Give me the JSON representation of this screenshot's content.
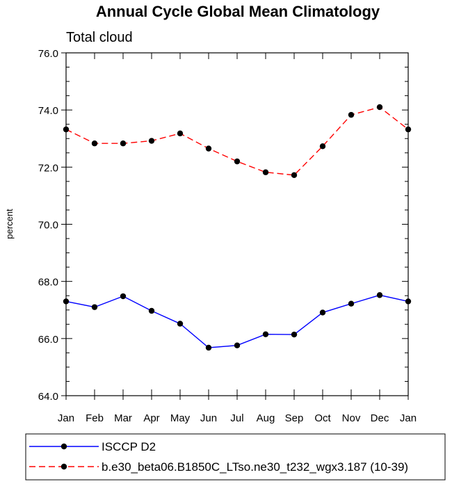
{
  "chart_data": {
    "type": "line",
    "title": "Annual Cycle Global Mean Climatology",
    "subtitle": "Total cloud",
    "xlabel": "",
    "ylabel": "percent",
    "categories": [
      "Jan",
      "Feb",
      "Mar",
      "Apr",
      "May",
      "Jun",
      "Jul",
      "Aug",
      "Sep",
      "Oct",
      "Nov",
      "Dec",
      "Jan"
    ],
    "ylim": [
      64.0,
      76.0
    ],
    "yticks": [
      64.0,
      66.0,
      68.0,
      70.0,
      72.0,
      74.0,
      76.0
    ],
    "ytick_labels": [
      "64.0",
      "66.0",
      "68.0",
      "70.0",
      "72.0",
      "74.0",
      "76.0"
    ],
    "grid": false,
    "legend_position": "bottom",
    "series": [
      {
        "name": "ISCCP D2",
        "color": "#0000ff",
        "line_style": "solid",
        "marker": "filled-circle",
        "values": [
          67.3,
          67.1,
          67.48,
          66.97,
          66.52,
          65.68,
          65.76,
          66.15,
          66.14,
          66.91,
          67.22,
          67.52,
          67.3
        ]
      },
      {
        "name": "b.e30_beta06.B1850C_LTso.ne30_t232_wgx3.187 (10-39)",
        "color": "#ff0000",
        "line_style": "dashed",
        "marker": "filled-circle",
        "values": [
          73.32,
          72.83,
          72.83,
          72.92,
          73.18,
          72.65,
          72.2,
          71.82,
          71.72,
          72.73,
          73.83,
          74.1,
          73.32
        ]
      }
    ]
  }
}
